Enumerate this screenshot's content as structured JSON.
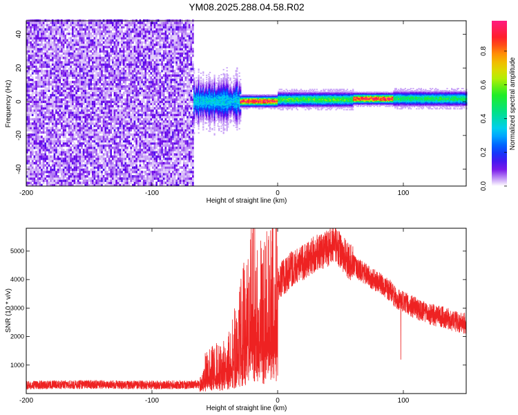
{
  "title": "YM08.2025.288.04.58.R02",
  "colors": {
    "snr_line": "#ee2222",
    "spectrogram_palette": [
      "#ffffff",
      "#6a00e8",
      "#0044ff",
      "#00ccff",
      "#00e08a",
      "#22ee22",
      "#ccee00",
      "#ffaa00",
      "#ff2020",
      "#ff1a80"
    ]
  },
  "chart_data": [
    {
      "type": "heatmap",
      "name": "spectrogram",
      "xlabel": "Height of straight line (km)",
      "ylabel": "Frequency (Hz)",
      "xlim": [
        -200,
        150
      ],
      "ylim": [
        -50,
        48
      ],
      "xticks": [
        -200,
        -100,
        0,
        100
      ],
      "yticks": [
        -40,
        -20,
        0,
        20,
        40
      ],
      "noise_region_km": [
        -200,
        -67
      ],
      "signal_band": [
        {
          "x_start": -67,
          "x_end": -30,
          "f_center": 0,
          "f_halfwidth": 5,
          "amplitude": 0.35
        },
        {
          "x_start": -30,
          "x_end": 0,
          "f_center": 0,
          "f_halfwidth": 1.5,
          "amplitude": 0.95
        },
        {
          "x_start": 0,
          "x_end": 60,
          "f_center": 1,
          "f_halfwidth": 2,
          "amplitude": 0.55
        },
        {
          "x_start": 60,
          "x_end": 92,
          "f_center": 1.5,
          "f_halfwidth": 1.5,
          "amplitude": 0.95
        },
        {
          "x_start": 92,
          "x_end": 150,
          "f_center": 1.5,
          "f_halfwidth": 2,
          "amplitude": 0.5
        }
      ],
      "colorbar": {
        "label": "Normalized spectral amplitude",
        "ticks": [
          "0.0",
          "0.2",
          "0.4",
          "0.6",
          "0.8"
        ],
        "tick_values": [
          0.0,
          0.2,
          0.4,
          0.6,
          0.8
        ],
        "range": [
          0,
          0.98
        ]
      }
    },
    {
      "type": "line",
      "name": "snr",
      "xlabel": "Height of straight line (km)",
      "ylabel": "SNR (10 * v/v)",
      "xlim": [
        -200,
        150
      ],
      "ylim": [
        0,
        5800
      ],
      "xticks": [
        -200,
        -100,
        0,
        100
      ],
      "yticks": [
        1000,
        2000,
        3000,
        4000,
        5000
      ],
      "envelope": {
        "x": [
          -200,
          -150,
          -100,
          -62,
          -58,
          -50,
          -40,
          -30,
          -22,
          -20,
          -15,
          -10,
          -5,
          0,
          10,
          20,
          30,
          40,
          45,
          50,
          60,
          70,
          80,
          90,
          95,
          100,
          110,
          120,
          130,
          140,
          150
        ],
        "y": [
          300,
          320,
          300,
          320,
          800,
          1000,
          1100,
          2200,
          3500,
          4300,
          3000,
          3200,
          3600,
          3900,
          4300,
          4600,
          4900,
          5100,
          5300,
          5000,
          4500,
          4200,
          3900,
          3600,
          3300,
          3200,
          3000,
          2800,
          2700,
          2550,
          2450
        ]
      },
      "notable_points": [
        {
          "x": -21,
          "y": 5800
        },
        {
          "x": 98,
          "y": 1200
        }
      ]
    }
  ]
}
